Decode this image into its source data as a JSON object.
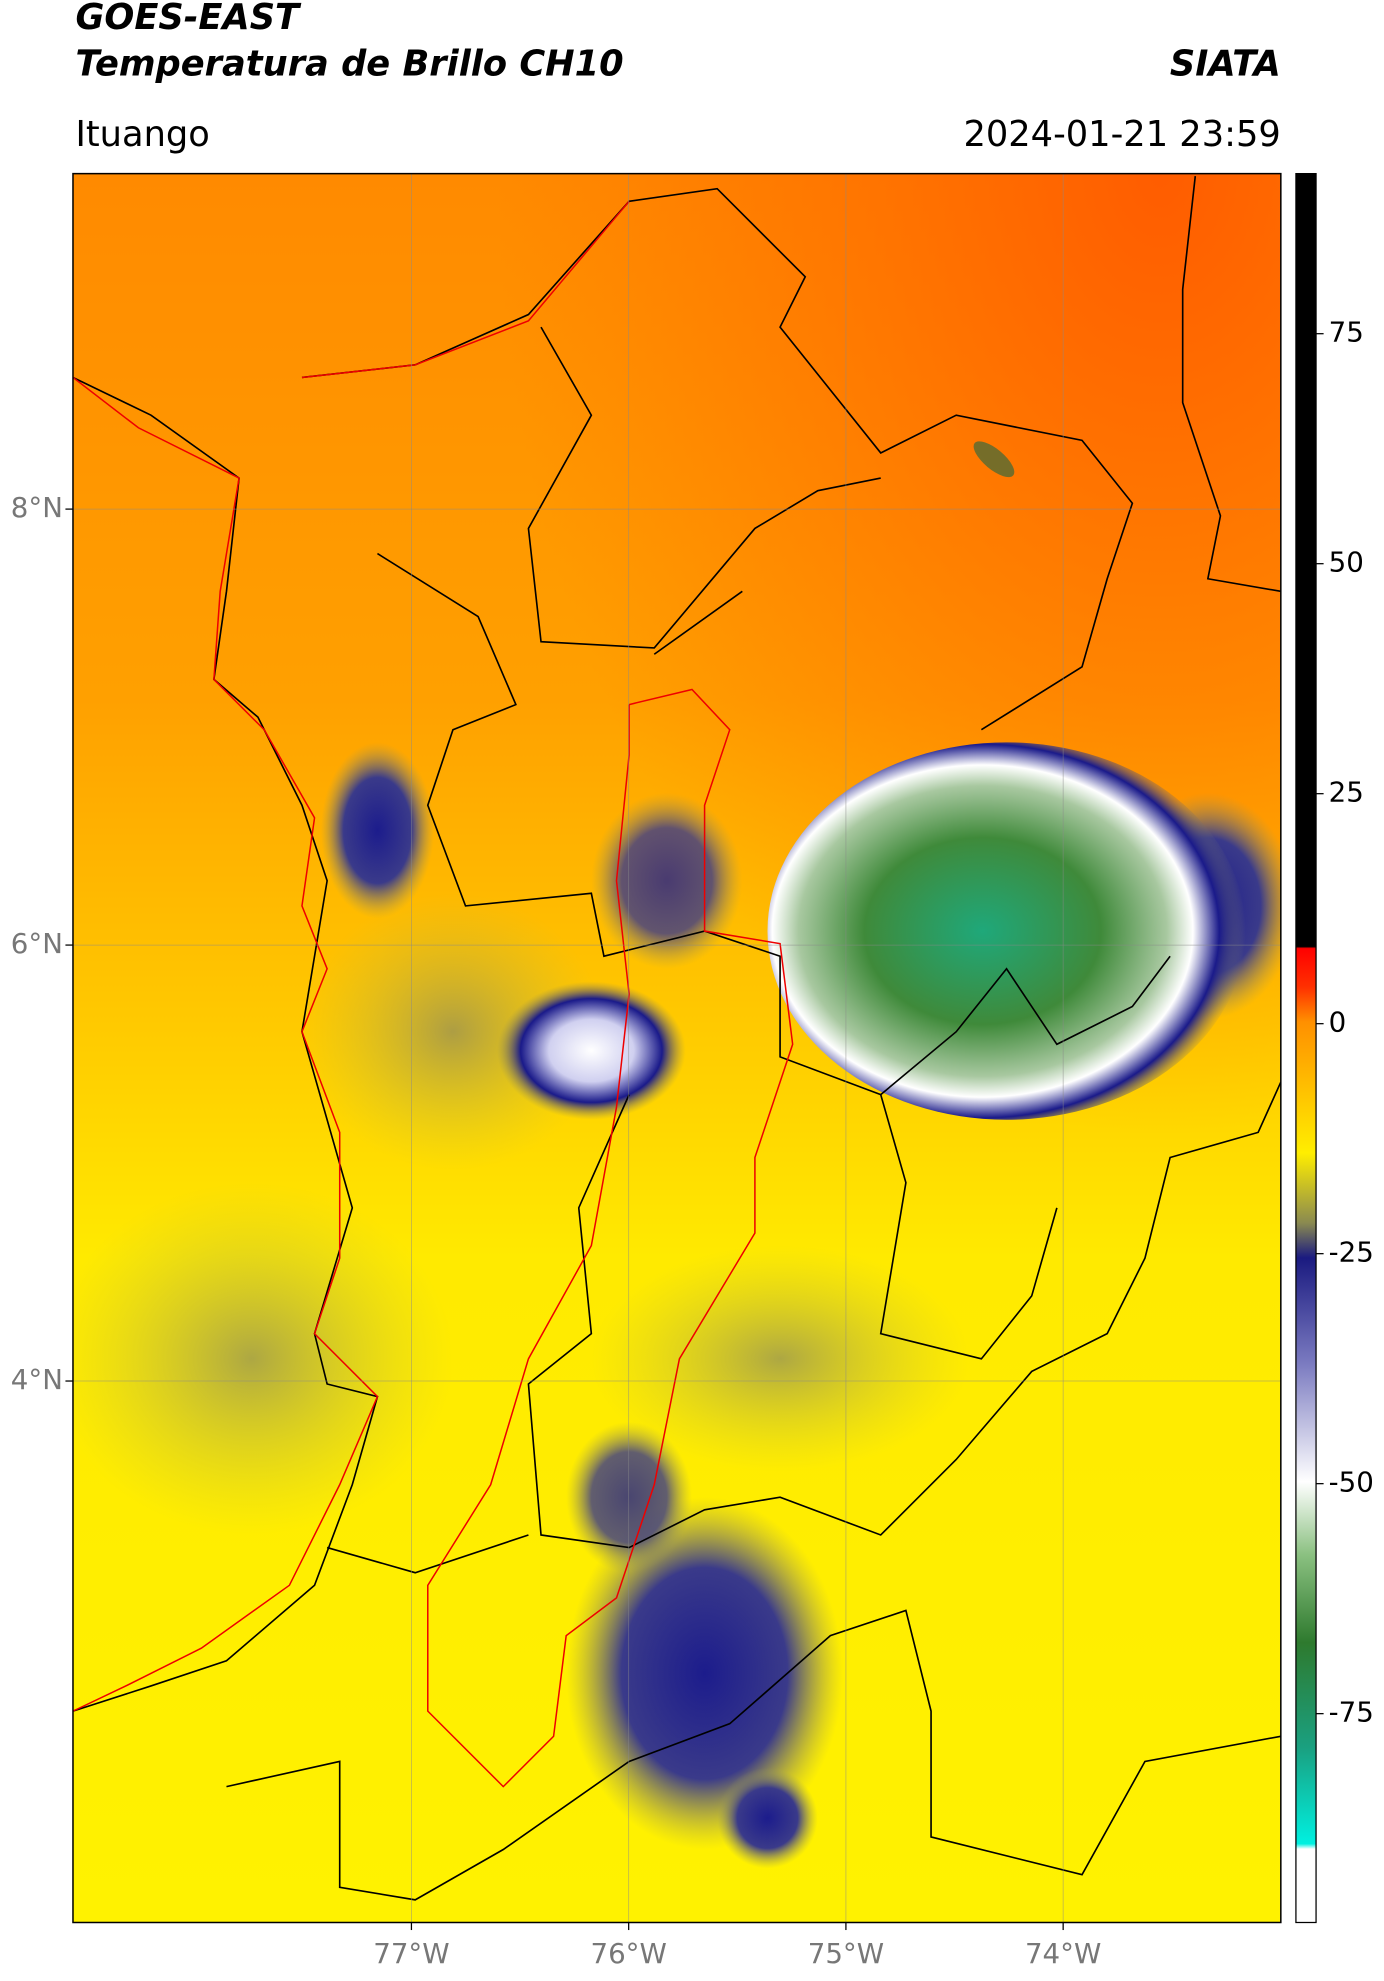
{
  "header": {
    "title": "GOES-EAST",
    "subtitle": "Temperatura de Brillo CH10",
    "source": "SIATA",
    "location": "Ituango",
    "datetime": "2024-01-21 23:59"
  },
  "map": {
    "xlim": [
      -78.558,
      -72.998
    ],
    "ylim": [
      1.516,
      9.539
    ],
    "xticks": [
      {
        "value": -77,
        "label": "77°W"
      },
      {
        "value": -76,
        "label": "76°W"
      },
      {
        "value": -75,
        "label": "75°W"
      },
      {
        "value": -74,
        "label": "74°W"
      }
    ],
    "yticks": [
      {
        "value": 8,
        "label": "8°N"
      },
      {
        "value": 6,
        "label": "6°N"
      },
      {
        "value": 4,
        "label": "4°N"
      }
    ],
    "grid": true
  },
  "colorbar": {
    "lim": [
      -97.7,
      92.4
    ],
    "ticks": [
      -75,
      -50,
      -25,
      0,
      25,
      50,
      75
    ]
  }
}
